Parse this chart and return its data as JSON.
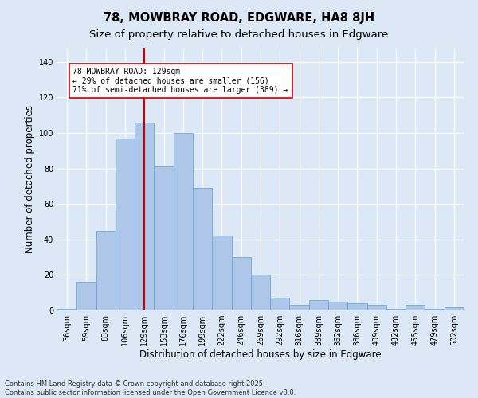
{
  "title1": "78, MOWBRAY ROAD, EDGWARE, HA8 8JH",
  "title2": "Size of property relative to detached houses in Edgware",
  "xlabel": "Distribution of detached houses by size in Edgware",
  "ylabel": "Number of detached properties",
  "bar_labels": [
    "36sqm",
    "59sqm",
    "83sqm",
    "106sqm",
    "129sqm",
    "153sqm",
    "176sqm",
    "199sqm",
    "222sqm",
    "246sqm",
    "269sqm",
    "292sqm",
    "316sqm",
    "339sqm",
    "362sqm",
    "386sqm",
    "409sqm",
    "432sqm",
    "455sqm",
    "479sqm",
    "502sqm"
  ],
  "bar_values": [
    1,
    16,
    45,
    97,
    106,
    81,
    100,
    69,
    42,
    30,
    20,
    7,
    3,
    6,
    5,
    4,
    3,
    1,
    3,
    1,
    2
  ],
  "bar_color": "#aec6e8",
  "bar_edge_color": "#6aaad4",
  "vline_x_idx": 4,
  "vline_color": "#cc0000",
  "annotation_line1": "78 MOWBRAY ROAD: 129sqm",
  "annotation_line2": "← 29% of detached houses are smaller (156)",
  "annotation_line3": "71% of semi-detached houses are larger (389) →",
  "annotation_box_color": "#ffffff",
  "annotation_box_edge": "#cc0000",
  "ylim": [
    0,
    148
  ],
  "yticks": [
    0,
    20,
    40,
    60,
    80,
    100,
    120,
    140
  ],
  "background_color": "#dce8f5",
  "plot_bg": "#dce8f5",
  "footer1": "Contains HM Land Registry data © Crown copyright and database right 2025.",
  "footer2": "Contains public sector information licensed under the Open Government Licence v3.0.",
  "grid_color": "#ffffff",
  "title1_fontsize": 10.5,
  "title2_fontsize": 9.5,
  "xlabel_fontsize": 8.5,
  "ylabel_fontsize": 8.5,
  "tick_fontsize": 7,
  "annotation_fontsize": 7,
  "footer_fontsize": 6
}
